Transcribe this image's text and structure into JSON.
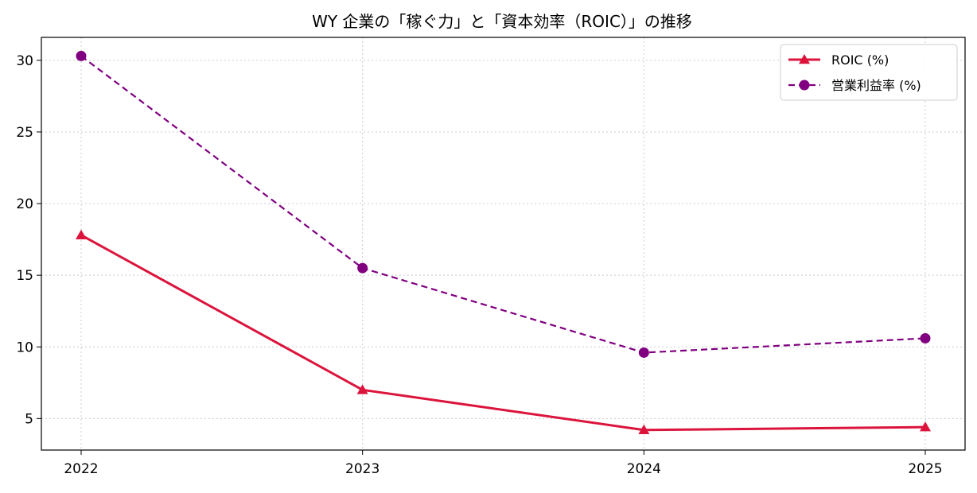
{
  "chart_data": {
    "type": "line",
    "title": "WY 企業の「稼ぐ力」と「資本効率（ROIC）」の推移",
    "xlabel": "",
    "ylabel": "",
    "categories": [
      "2022",
      "2023",
      "2024",
      "2025"
    ],
    "ylim": [
      2.8,
      31.6
    ],
    "yticks": [
      5,
      10,
      15,
      20,
      25,
      30
    ],
    "grid": true,
    "legend_position": "top-right",
    "series": [
      {
        "name": "ROIC (%)",
        "values": [
          17.8,
          7.0,
          4.2,
          4.4
        ],
        "color": "#dc143c",
        "line_style": "solid",
        "marker": "triangle"
      },
      {
        "name": "営業利益率 (%)",
        "values": [
          30.3,
          15.5,
          9.6,
          10.6
        ],
        "color": "#800080",
        "line_style": "dashed",
        "marker": "circle"
      }
    ]
  }
}
